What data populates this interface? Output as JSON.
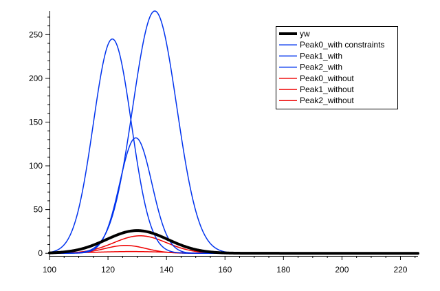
{
  "chart_data": {
    "type": "line",
    "title": "",
    "xlabel": "",
    "ylabel": "",
    "xlim": [
      100,
      226
    ],
    "ylim": [
      -3,
      277
    ],
    "x_ticks": [
      100,
      120,
      140,
      160,
      180,
      200,
      220
    ],
    "y_ticks": [
      0,
      50,
      100,
      150,
      200,
      250
    ],
    "grid": false,
    "legend_position": "top-right",
    "series": [
      {
        "name": "yw",
        "color": "#000000",
        "width": 4,
        "shape": "gaussian",
        "amplitude": 26,
        "center": 130,
        "sigma": 10.5
      },
      {
        "name": "Peak0_with constraints",
        "color": "#0033ee",
        "width": 1.5,
        "shape": "gaussian",
        "amplitude": 245,
        "center": 121.5,
        "sigma": 6.5
      },
      {
        "name": "Peak1_with",
        "color": "#0033ee",
        "width": 1.5,
        "shape": "gaussian",
        "amplitude": 132,
        "center": 129.5,
        "sigma": 5.5
      },
      {
        "name": "Peak2_with",
        "color": "#0033ee",
        "width": 1.5,
        "shape": "gaussian",
        "amplitude": 277,
        "center": 136,
        "sigma": 7.5
      },
      {
        "name": "Peak0_without",
        "color": "#ee0000",
        "width": 1.5,
        "shape": "gaussian",
        "amplitude": 9,
        "center": 126,
        "sigma": 7
      },
      {
        "name": "Peak1_without",
        "color": "#ee0000",
        "width": 1.5,
        "shape": "gaussian",
        "amplitude": 20,
        "center": 131,
        "sigma": 9
      },
      {
        "name": "Peak2_without",
        "color": "#ee0000",
        "width": 1.5,
        "shape": "gaussian",
        "amplitude": 2,
        "center": 128,
        "sigma": 12
      }
    ]
  }
}
